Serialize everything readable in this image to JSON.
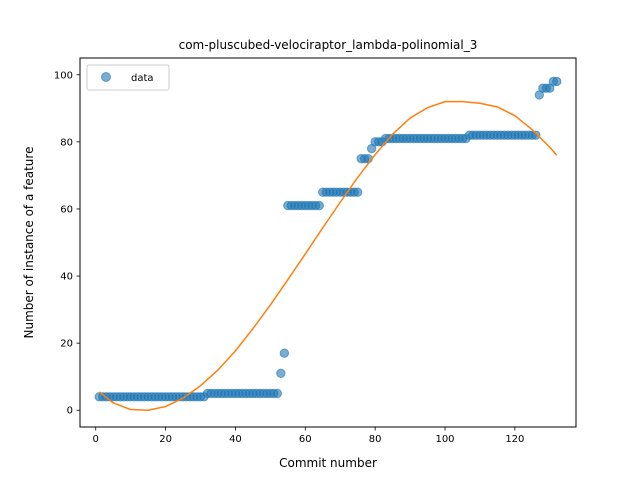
{
  "chart_data": {
    "type": "scatter",
    "title": "com-pluscubed-velociraptor_lambda-polinomial_3",
    "xlabel": "Commit number",
    "ylabel": "Number of instance of a feature",
    "xlim": [
      -4.5,
      137.5
    ],
    "ylim": [
      -5,
      105
    ],
    "xticks": [
      0,
      20,
      40,
      60,
      80,
      100,
      120
    ],
    "yticks": [
      0,
      20,
      40,
      60,
      80,
      100
    ],
    "grid": false,
    "legend": {
      "placement": "top-left",
      "entries": [
        "data"
      ]
    },
    "colors": {
      "data": "#1f77b4",
      "fit": "#ff7f0e"
    },
    "series": [
      {
        "name": "data",
        "kind": "scatter",
        "points": [
          [
            1,
            4
          ],
          [
            2,
            4
          ],
          [
            3,
            4
          ],
          [
            4,
            4
          ],
          [
            5,
            4
          ],
          [
            6,
            4
          ],
          [
            7,
            4
          ],
          [
            8,
            4
          ],
          [
            9,
            4
          ],
          [
            10,
            4
          ],
          [
            11,
            4
          ],
          [
            12,
            4
          ],
          [
            13,
            4
          ],
          [
            14,
            4
          ],
          [
            15,
            4
          ],
          [
            16,
            4
          ],
          [
            17,
            4
          ],
          [
            18,
            4
          ],
          [
            19,
            4
          ],
          [
            20,
            4
          ],
          [
            21,
            4
          ],
          [
            22,
            4
          ],
          [
            23,
            4
          ],
          [
            24,
            4
          ],
          [
            25,
            4
          ],
          [
            26,
            4
          ],
          [
            27,
            4
          ],
          [
            28,
            4
          ],
          [
            29,
            4
          ],
          [
            30,
            4
          ],
          [
            31,
            4
          ],
          [
            32,
            5
          ],
          [
            33,
            5
          ],
          [
            34,
            5
          ],
          [
            35,
            5
          ],
          [
            36,
            5
          ],
          [
            37,
            5
          ],
          [
            38,
            5
          ],
          [
            39,
            5
          ],
          [
            40,
            5
          ],
          [
            41,
            5
          ],
          [
            42,
            5
          ],
          [
            43,
            5
          ],
          [
            44,
            5
          ],
          [
            45,
            5
          ],
          [
            46,
            5
          ],
          [
            47,
            5
          ],
          [
            48,
            5
          ],
          [
            49,
            5
          ],
          [
            50,
            5
          ],
          [
            51,
            5
          ],
          [
            52,
            5
          ],
          [
            53,
            11
          ],
          [
            54,
            17
          ],
          [
            55,
            61
          ],
          [
            56,
            61
          ],
          [
            57,
            61
          ],
          [
            58,
            61
          ],
          [
            59,
            61
          ],
          [
            60,
            61
          ],
          [
            61,
            61
          ],
          [
            62,
            61
          ],
          [
            63,
            61
          ],
          [
            64,
            61
          ],
          [
            65,
            65
          ],
          [
            66,
            65
          ],
          [
            67,
            65
          ],
          [
            68,
            65
          ],
          [
            69,
            65
          ],
          [
            70,
            65
          ],
          [
            71,
            65
          ],
          [
            72,
            65
          ],
          [
            73,
            65
          ],
          [
            74,
            65
          ],
          [
            75,
            65
          ],
          [
            76,
            75
          ],
          [
            77,
            75
          ],
          [
            78,
            75
          ],
          [
            79,
            78
          ],
          [
            80,
            80
          ],
          [
            81,
            80
          ],
          [
            82,
            80
          ],
          [
            83,
            81
          ],
          [
            84,
            81
          ],
          [
            85,
            81
          ],
          [
            86,
            81
          ],
          [
            87,
            81
          ],
          [
            88,
            81
          ],
          [
            89,
            81
          ],
          [
            90,
            81
          ],
          [
            91,
            81
          ],
          [
            92,
            81
          ],
          [
            93,
            81
          ],
          [
            94,
            81
          ],
          [
            95,
            81
          ],
          [
            96,
            81
          ],
          [
            97,
            81
          ],
          [
            98,
            81
          ],
          [
            99,
            81
          ],
          [
            100,
            81
          ],
          [
            101,
            81
          ],
          [
            102,
            81
          ],
          [
            103,
            81
          ],
          [
            104,
            81
          ],
          [
            105,
            81
          ],
          [
            106,
            81
          ],
          [
            107,
            82
          ],
          [
            108,
            82
          ],
          [
            109,
            82
          ],
          [
            110,
            82
          ],
          [
            111,
            82
          ],
          [
            112,
            82
          ],
          [
            113,
            82
          ],
          [
            114,
            82
          ],
          [
            115,
            82
          ],
          [
            116,
            82
          ],
          [
            117,
            82
          ],
          [
            118,
            82
          ],
          [
            119,
            82
          ],
          [
            120,
            82
          ],
          [
            121,
            82
          ],
          [
            122,
            82
          ],
          [
            123,
            82
          ],
          [
            124,
            82
          ],
          [
            125,
            82
          ],
          [
            126,
            82
          ],
          [
            127,
            94
          ],
          [
            128,
            96
          ],
          [
            129,
            96
          ],
          [
            130,
            96
          ],
          [
            131,
            98
          ],
          [
            132,
            98
          ]
        ]
      },
      {
        "name": "",
        "kind": "line",
        "points": [
          [
            1,
            5.5
          ],
          [
            5,
            2.2
          ],
          [
            10,
            0.2
          ],
          [
            15,
            0.0
          ],
          [
            20,
            1.1
          ],
          [
            25,
            3.6
          ],
          [
            30,
            7.3
          ],
          [
            35,
            12.0
          ],
          [
            40,
            17.7
          ],
          [
            45,
            24.3
          ],
          [
            50,
            31.4
          ],
          [
            55,
            38.9
          ],
          [
            60,
            46.6
          ],
          [
            65,
            54.4
          ],
          [
            70,
            62.0
          ],
          [
            75,
            69.4
          ],
          [
            80,
            76.2
          ],
          [
            85,
            82.3
          ],
          [
            90,
            87.1
          ],
          [
            95,
            90.2
          ],
          [
            100,
            92.0
          ],
          [
            105,
            92.0
          ],
          [
            110,
            91.5
          ],
          [
            115,
            90.4
          ],
          [
            120,
            87.8
          ],
          [
            125,
            83.6
          ],
          [
            130,
            78.4
          ],
          [
            132,
            76.0
          ]
        ]
      }
    ]
  }
}
